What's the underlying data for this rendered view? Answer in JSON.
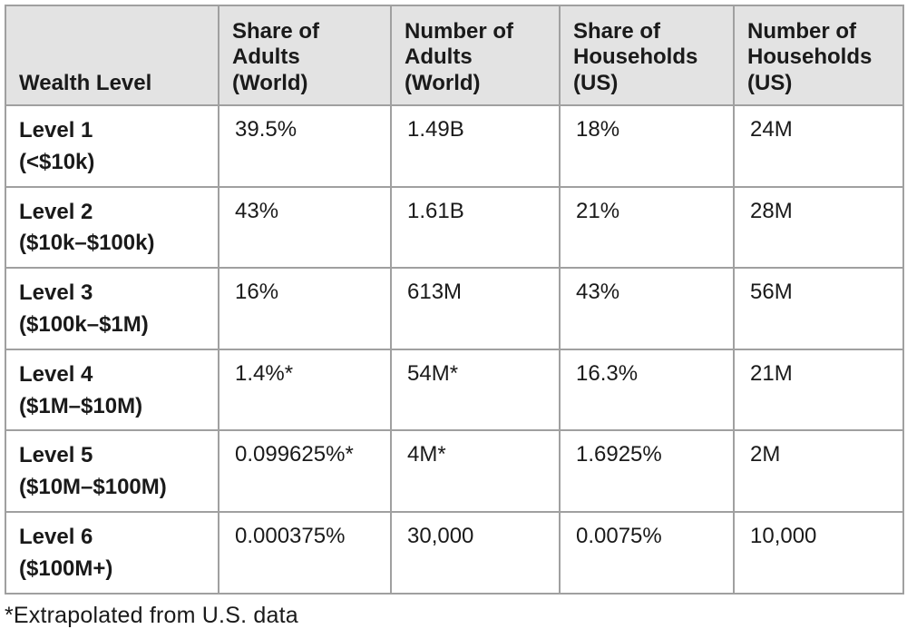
{
  "colors": {
    "border": "#a0a0a0",
    "header_background": "#e3e3e3",
    "text": "#1a1a1a",
    "page_background": "#ffffff"
  },
  "table": {
    "header": {
      "wealth_level": "Wealth Level",
      "share_adults_world": "Share of\nAdults\n(World)",
      "number_adults_world": "Number of\nAdults\n(World)",
      "share_households_us": "Share of\nHouseholds\n(US)",
      "number_households_us": "Number of\nHouseholds\n(US)"
    },
    "rows": [
      {
        "level_label": "Level 1\n(<$10k)",
        "share_adults_world": "39.5%",
        "number_adults_world": "1.49B",
        "share_households_us": "18%",
        "number_households_us": "24M"
      },
      {
        "level_label": "Level 2\n($10k–$100k)",
        "share_adults_world": "43%",
        "number_adults_world": "1.61B",
        "share_households_us": "21%",
        "number_households_us": "28M"
      },
      {
        "level_label": "Level 3\n($100k–$1M)",
        "share_adults_world": "16%",
        "number_adults_world": "613M",
        "share_households_us": "43%",
        "number_households_us": "56M"
      },
      {
        "level_label": "Level 4\n($1M–$10M)",
        "share_adults_world": "1.4%*",
        "number_adults_world": "54M*",
        "share_households_us": "16.3%",
        "number_households_us": "21M"
      },
      {
        "level_label": "Level 5\n($10M–$100M)",
        "share_adults_world": "0.099625%*",
        "number_adults_world": "4M*",
        "share_households_us": "1.6925%",
        "number_households_us": "2M"
      },
      {
        "level_label": "Level 6\n($100M+)",
        "share_adults_world": "0.000375%",
        "number_adults_world": "30,000",
        "share_households_us": "0.0075%",
        "number_households_us": "10,000"
      }
    ],
    "footnote": "*Extrapolated from U.S. data"
  }
}
